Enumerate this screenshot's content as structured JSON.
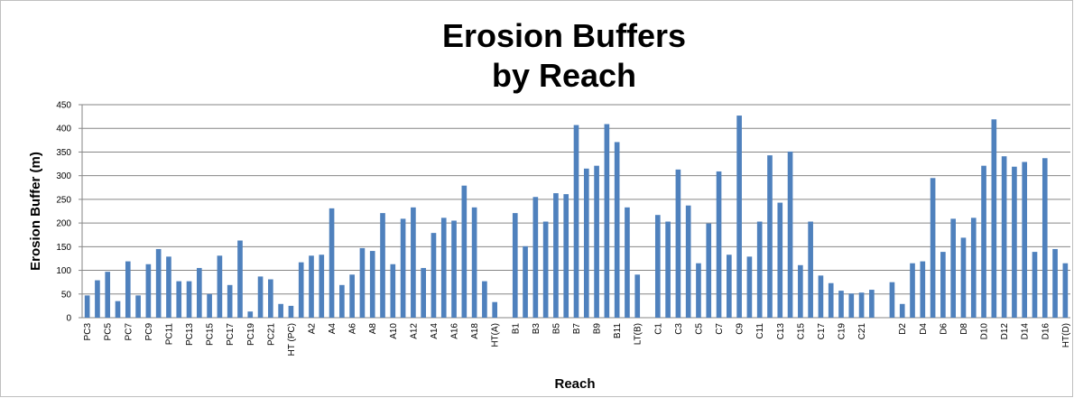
{
  "chart_data": {
    "type": "bar",
    "title": "Erosion Buffers by Reach",
    "x_label": "Reach",
    "y_label": "Erosion Buffer (m)",
    "color": "#4f81bd",
    "grid": true,
    "ylim": [
      0,
      450
    ],
    "yticks": [
      0,
      50,
      100,
      150,
      200,
      250,
      300,
      350,
      400,
      450
    ],
    "categories": [
      "PC3",
      null,
      "PC5",
      null,
      "PC7",
      null,
      "PC9",
      null,
      "PC11",
      null,
      "PC13",
      null,
      "PC15",
      null,
      "PC17",
      null,
      "PC19",
      null,
      "PC21",
      null,
      "HT (PC)",
      null,
      "A2",
      null,
      "A4",
      null,
      "A6",
      null,
      "A8",
      null,
      "A10",
      null,
      "A12",
      null,
      "A14",
      null,
      "A16",
      null,
      "A18",
      null,
      "HT(A)",
      null,
      "B1",
      null,
      "B3",
      null,
      "B5",
      null,
      "B7",
      null,
      "B9",
      null,
      "B11",
      null,
      "LT(B)",
      null,
      "C1",
      null,
      "C3",
      null,
      "C5",
      null,
      "C7",
      null,
      "C9",
      null,
      "C11",
      null,
      "C13",
      null,
      "C15",
      null,
      "C17",
      null,
      "C19",
      null,
      "C21",
      null,
      null,
      null,
      "D2",
      null,
      "D4",
      null,
      "D6",
      null,
      "D8",
      null,
      "D10",
      null,
      "D12",
      null,
      "D14",
      null,
      "D16",
      null,
      "HT(D)"
    ],
    "values": [
      47,
      79,
      97,
      35,
      119,
      47,
      113,
      145,
      129,
      77,
      77,
      105,
      50,
      131,
      69,
      163,
      13,
      87,
      81,
      29,
      25,
      117,
      131,
      133,
      231,
      69,
      91,
      147,
      141,
      221,
      113,
      209,
      233,
      105,
      179,
      211,
      205,
      279,
      233,
      77,
      33,
      null,
      221,
      151,
      255,
      203,
      263,
      261,
      407,
      315,
      321,
      409,
      371,
      233,
      91,
      null,
      217,
      203,
      313,
      237,
      115,
      199,
      309,
      133,
      427,
      129,
      203,
      343,
      243,
      351,
      111,
      203,
      89,
      73,
      57,
      51,
      53,
      59,
      null,
      75,
      29,
      115,
      119,
      295,
      139,
      209,
      169,
      211,
      321,
      419,
      341,
      319,
      329,
      139,
      337,
      145,
      115
    ]
  }
}
